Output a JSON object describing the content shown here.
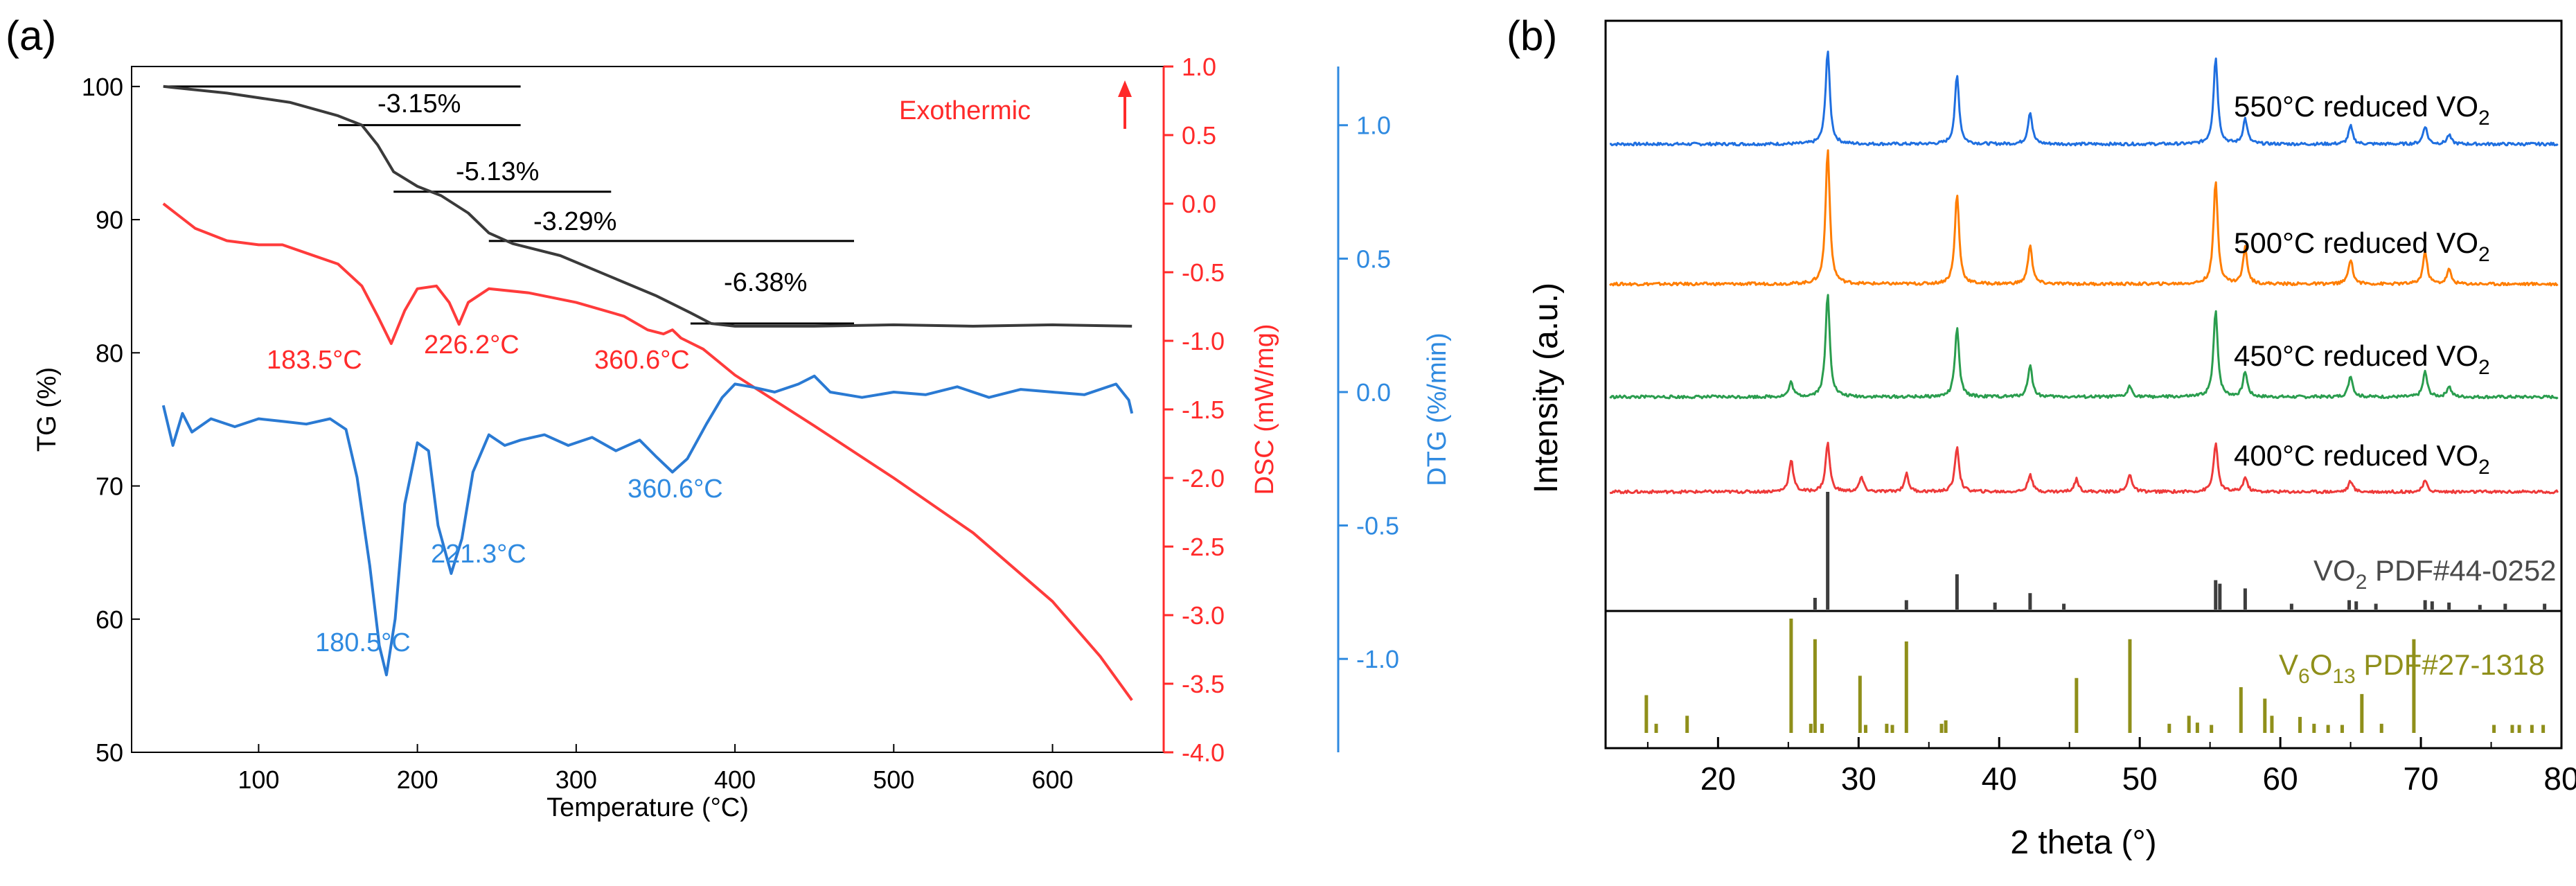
{
  "chart_data": [
    {
      "panel_label": "(a)",
      "type": "line",
      "xlabel": "Temperature (°C)",
      "xlim": [
        20,
        670
      ],
      "xticks": [
        100,
        200,
        300,
        400,
        500,
        600
      ],
      "axes": {
        "tg": {
          "label": "TG (%)",
          "ylim": [
            50,
            101.5
          ],
          "ticks": [
            50,
            60,
            70,
            80,
            90,
            100
          ],
          "color": "#000000"
        },
        "dsc": {
          "label": "DSC (mW/mg)",
          "ylim": [
            -4.0,
            1.0
          ],
          "ticks": [
            1.0,
            0.5,
            0.0,
            -0.5,
            -1.0,
            -1.5,
            -2.0,
            -2.5,
            -3.0,
            -3.5,
            -4.0
          ],
          "tick_labels": [
            "1.0",
            "0.5",
            "0.0",
            "-0.5",
            "-1.0",
            "-1.5",
            "-2.0",
            "-2.5",
            "-3.0",
            "-3.5",
            "-4.0"
          ],
          "color": "#ff2a2a"
        },
        "dtg": {
          "label": "DTG (%/min)",
          "ylim": [
            -1.35,
            1.22
          ],
          "ticks": [
            1.0,
            0.5,
            0.0,
            -0.5,
            -1.0
          ],
          "tick_labels": [
            "1.0",
            "0.5",
            "0.0",
            "-0.5",
            "-1.0"
          ],
          "color": "#2f8ae0"
        }
      },
      "series": [
        {
          "name": "TG",
          "axis": "tg",
          "color": "#3a3a3a",
          "points": [
            [
              40,
              100
            ],
            [
              80,
              99.5
            ],
            [
              120,
              98.8
            ],
            [
              150,
              97.8
            ],
            [
              165,
              97.1
            ],
            [
              175,
              95.6
            ],
            [
              185,
              93.6
            ],
            [
              200,
              92.5
            ],
            [
              215,
              91.8
            ],
            [
              232,
              90.5
            ],
            [
              245,
              89
            ],
            [
              260,
              88.2
            ],
            [
              290,
              87.3
            ],
            [
              320,
              85.8
            ],
            [
              350,
              84.3
            ],
            [
              372,
              83
            ],
            [
              385,
              82.2
            ],
            [
              400,
              82
            ],
            [
              450,
              82
            ],
            [
              500,
              82.1
            ],
            [
              550,
              82
            ],
            [
              600,
              82.1
            ],
            [
              650,
              82
            ]
          ]
        },
        {
          "name": "DSC",
          "axis": "dsc",
          "color": "#ff3b3b",
          "points": [
            [
              40,
              0.0
            ],
            [
              60,
              -0.18
            ],
            [
              80,
              -0.27
            ],
            [
              100,
              -0.3
            ],
            [
              115,
              -0.3
            ],
            [
              130,
              -0.36
            ],
            [
              150,
              -0.44
            ],
            [
              165,
              -0.6
            ],
            [
              175,
              -0.82
            ],
            [
              183.5,
              -1.02
            ],
            [
              192,
              -0.78
            ],
            [
              200,
              -0.62
            ],
            [
              212,
              -0.6
            ],
            [
              220,
              -0.72
            ],
            [
              226.2,
              -0.88
            ],
            [
              232,
              -0.72
            ],
            [
              245,
              -0.62
            ],
            [
              270,
              -0.65
            ],
            [
              300,
              -0.72
            ],
            [
              330,
              -0.82
            ],
            [
              345,
              -0.92
            ],
            [
              355,
              -0.95
            ],
            [
              360.6,
              -0.92
            ],
            [
              366,
              -0.98
            ],
            [
              380,
              -1.06
            ],
            [
              400,
              -1.25
            ],
            [
              450,
              -1.62
            ],
            [
              500,
              -2.0
            ],
            [
              550,
              -2.4
            ],
            [
              600,
              -2.9
            ],
            [
              630,
              -3.3
            ],
            [
              650,
              -3.62
            ]
          ]
        },
        {
          "name": "DTG",
          "axis": "dtg",
          "color": "#2a7ad3",
          "points": [
            [
              40,
              -0.05
            ],
            [
              46,
              -0.2
            ],
            [
              52,
              -0.08
            ],
            [
              58,
              -0.15
            ],
            [
              70,
              -0.1
            ],
            [
              85,
              -0.13
            ],
            [
              100,
              -0.1
            ],
            [
              115,
              -0.11
            ],
            [
              130,
              -0.12
            ],
            [
              145,
              -0.1
            ],
            [
              155,
              -0.14
            ],
            [
              162,
              -0.32
            ],
            [
              170,
              -0.65
            ],
            [
              176,
              -0.95
            ],
            [
              180.5,
              -1.06
            ],
            [
              186,
              -0.85
            ],
            [
              192,
              -0.42
            ],
            [
              200,
              -0.19
            ],
            [
              207,
              -0.22
            ],
            [
              213,
              -0.5
            ],
            [
              221.3,
              -0.68
            ],
            [
              228,
              -0.55
            ],
            [
              235,
              -0.3
            ],
            [
              245,
              -0.16
            ],
            [
              255,
              -0.2
            ],
            [
              265,
              -0.18
            ],
            [
              280,
              -0.16
            ],
            [
              295,
              -0.2
            ],
            [
              310,
              -0.17
            ],
            [
              325,
              -0.22
            ],
            [
              340,
              -0.18
            ],
            [
              350,
              -0.24
            ],
            [
              360.6,
              -0.3
            ],
            [
              370,
              -0.25
            ],
            [
              382,
              -0.12
            ],
            [
              392,
              -0.02
            ],
            [
              400,
              0.03
            ],
            [
              410,
              0.02
            ],
            [
              425,
              0.0
            ],
            [
              440,
              0.03
            ],
            [
              450,
              0.06
            ],
            [
              460,
              0.0
            ],
            [
              480,
              -0.02
            ],
            [
              500,
              0.0
            ],
            [
              520,
              -0.01
            ],
            [
              540,
              0.02
            ],
            [
              560,
              -0.02
            ],
            [
              580,
              0.01
            ],
            [
              600,
              0.0
            ],
            [
              620,
              -0.01
            ],
            [
              640,
              0.03
            ],
            [
              648,
              -0.03
            ],
            [
              650,
              -0.08
            ]
          ]
        }
      ],
      "weight_losses": [
        {
          "label": "-3.15%",
          "from": 40,
          "to": 265,
          "level": 100
        },
        {
          "label": "",
          "from": 150,
          "to": 265,
          "level": 97.1
        },
        {
          "label": "-5.13%",
          "from": 185,
          "to": 322,
          "level": 92.1
        },
        {
          "label": "-3.29%",
          "from": 245,
          "to": 475,
          "level": 88.4
        },
        {
          "label": "-6.38%",
          "from": 372,
          "to": 475,
          "level": 82.2
        }
      ],
      "annotations": {
        "exothermic": "Exothermic",
        "dsc_peaks": [
          "183.5°C",
          "226.2°C",
          "360.6°C"
        ],
        "dtg_peaks": [
          "180.5°C",
          "221.3°C",
          "360.6°C"
        ]
      }
    },
    {
      "panel_label": "(b)",
      "type": "line",
      "xlabel": "2 theta (°)",
      "ylabel": "Intensity (a.u.)",
      "xlim": [
        12,
        80
      ],
      "xticks": [
        20,
        30,
        40,
        50,
        60,
        70,
        80
      ],
      "series": [
        {
          "name": "550°C reduced VO2",
          "label_main": "550°C reduced VO",
          "label_sub": "2",
          "color": "#1f6fe0",
          "baseline": 0,
          "peaks": [
            [
              27.8,
              52
            ],
            [
              37.0,
              38
            ],
            [
              42.2,
              18
            ],
            [
              55.4,
              48
            ],
            [
              57.5,
              14
            ],
            [
              65.0,
              10
            ],
            [
              70.3,
              10
            ],
            [
              72.0,
              5
            ]
          ]
        },
        {
          "name": "500°C reduced VO2",
          "label_main": "500°C reduced VO",
          "label_sub": "2",
          "color": "#ff7d00",
          "baseline": 0,
          "peaks": [
            [
              27.8,
              75
            ],
            [
              37.0,
              50
            ],
            [
              42.2,
              22
            ],
            [
              55.4,
              57
            ],
            [
              57.5,
              20
            ],
            [
              65.0,
              14
            ],
            [
              70.3,
              18
            ],
            [
              72.0,
              8
            ]
          ]
        },
        {
          "name": "450°C reduced VO2",
          "label_main": "450°C reduced VO",
          "label_sub": "2",
          "color": "#2a9d4e",
          "baseline": 0,
          "peaks": [
            [
              25.2,
              8
            ],
            [
              27.8,
              57
            ],
            [
              37.0,
              38
            ],
            [
              42.2,
              18
            ],
            [
              49.3,
              6
            ],
            [
              55.4,
              48
            ],
            [
              57.5,
              14
            ],
            [
              65.0,
              12
            ],
            [
              70.3,
              14
            ],
            [
              72.0,
              6
            ]
          ]
        },
        {
          "name": "400°C reduced VO2",
          "label_main": "400°C reduced VO",
          "label_sub": "2",
          "color": "#ee3a3a",
          "baseline": 0,
          "peaks": [
            [
              25.2,
              18
            ],
            [
              27.8,
              27
            ],
            [
              30.2,
              8
            ],
            [
              33.4,
              10
            ],
            [
              37.0,
              25
            ],
            [
              42.2,
              10
            ],
            [
              45.5,
              7
            ],
            [
              49.3,
              10
            ],
            [
              55.4,
              27
            ],
            [
              57.5,
              8
            ],
            [
              65.0,
              6
            ],
            [
              70.3,
              6
            ]
          ]
        }
      ],
      "references": [
        {
          "name": "VO2 PDF#44-0252",
          "label_main": "VO",
          "label_sub": "2",
          "label_rest": " PDF#44-0252",
          "color": "#3d3d3d",
          "sticks": [
            [
              26.9,
              10
            ],
            [
              27.8,
              100
            ],
            [
              33.4,
              8
            ],
            [
              37.0,
              30
            ],
            [
              39.7,
              6
            ],
            [
              42.2,
              14
            ],
            [
              44.6,
              5
            ],
            [
              55.4,
              25
            ],
            [
              55.7,
              22
            ],
            [
              57.5,
              18
            ],
            [
              60.8,
              5
            ],
            [
              64.9,
              8
            ],
            [
              65.4,
              7
            ],
            [
              66.8,
              5
            ],
            [
              70.3,
              8
            ],
            [
              70.8,
              7
            ],
            [
              72.0,
              6
            ],
            [
              74.2,
              4
            ],
            [
              76.0,
              5
            ],
            [
              78.8,
              5
            ]
          ]
        },
        {
          "name": "V6O13 PDF#27-1318",
          "label_main": "V",
          "label_sub": "6",
          "label_mid": "O",
          "label_sub2": "13",
          "label_rest": " PDF#27-1318",
          "color": "#8f8f1a",
          "sticks": [
            [
              14.9,
              33
            ],
            [
              15.6,
              8
            ],
            [
              17.8,
              15
            ],
            [
              25.2,
              100
            ],
            [
              26.6,
              8
            ],
            [
              26.9,
              82
            ],
            [
              27.4,
              8
            ],
            [
              30.1,
              50
            ],
            [
              30.5,
              7
            ],
            [
              32.0,
              8
            ],
            [
              32.4,
              7
            ],
            [
              33.4,
              80
            ],
            [
              35.9,
              8
            ],
            [
              36.2,
              11
            ],
            [
              45.5,
              48
            ],
            [
              49.3,
              82
            ],
            [
              52.1,
              8
            ],
            [
              53.5,
              15
            ],
            [
              54.1,
              9
            ],
            [
              55.1,
              7
            ],
            [
              57.2,
              40
            ],
            [
              58.9,
              30
            ],
            [
              59.4,
              15
            ],
            [
              61.4,
              14
            ],
            [
              62.4,
              8
            ],
            [
              63.4,
              7
            ],
            [
              64.4,
              7
            ],
            [
              65.8,
              34
            ],
            [
              67.2,
              8
            ],
            [
              69.5,
              82
            ],
            [
              75.2,
              7
            ],
            [
              76.5,
              7
            ],
            [
              77.0,
              7
            ],
            [
              77.9,
              7
            ],
            [
              78.7,
              7
            ]
          ]
        }
      ]
    }
  ]
}
